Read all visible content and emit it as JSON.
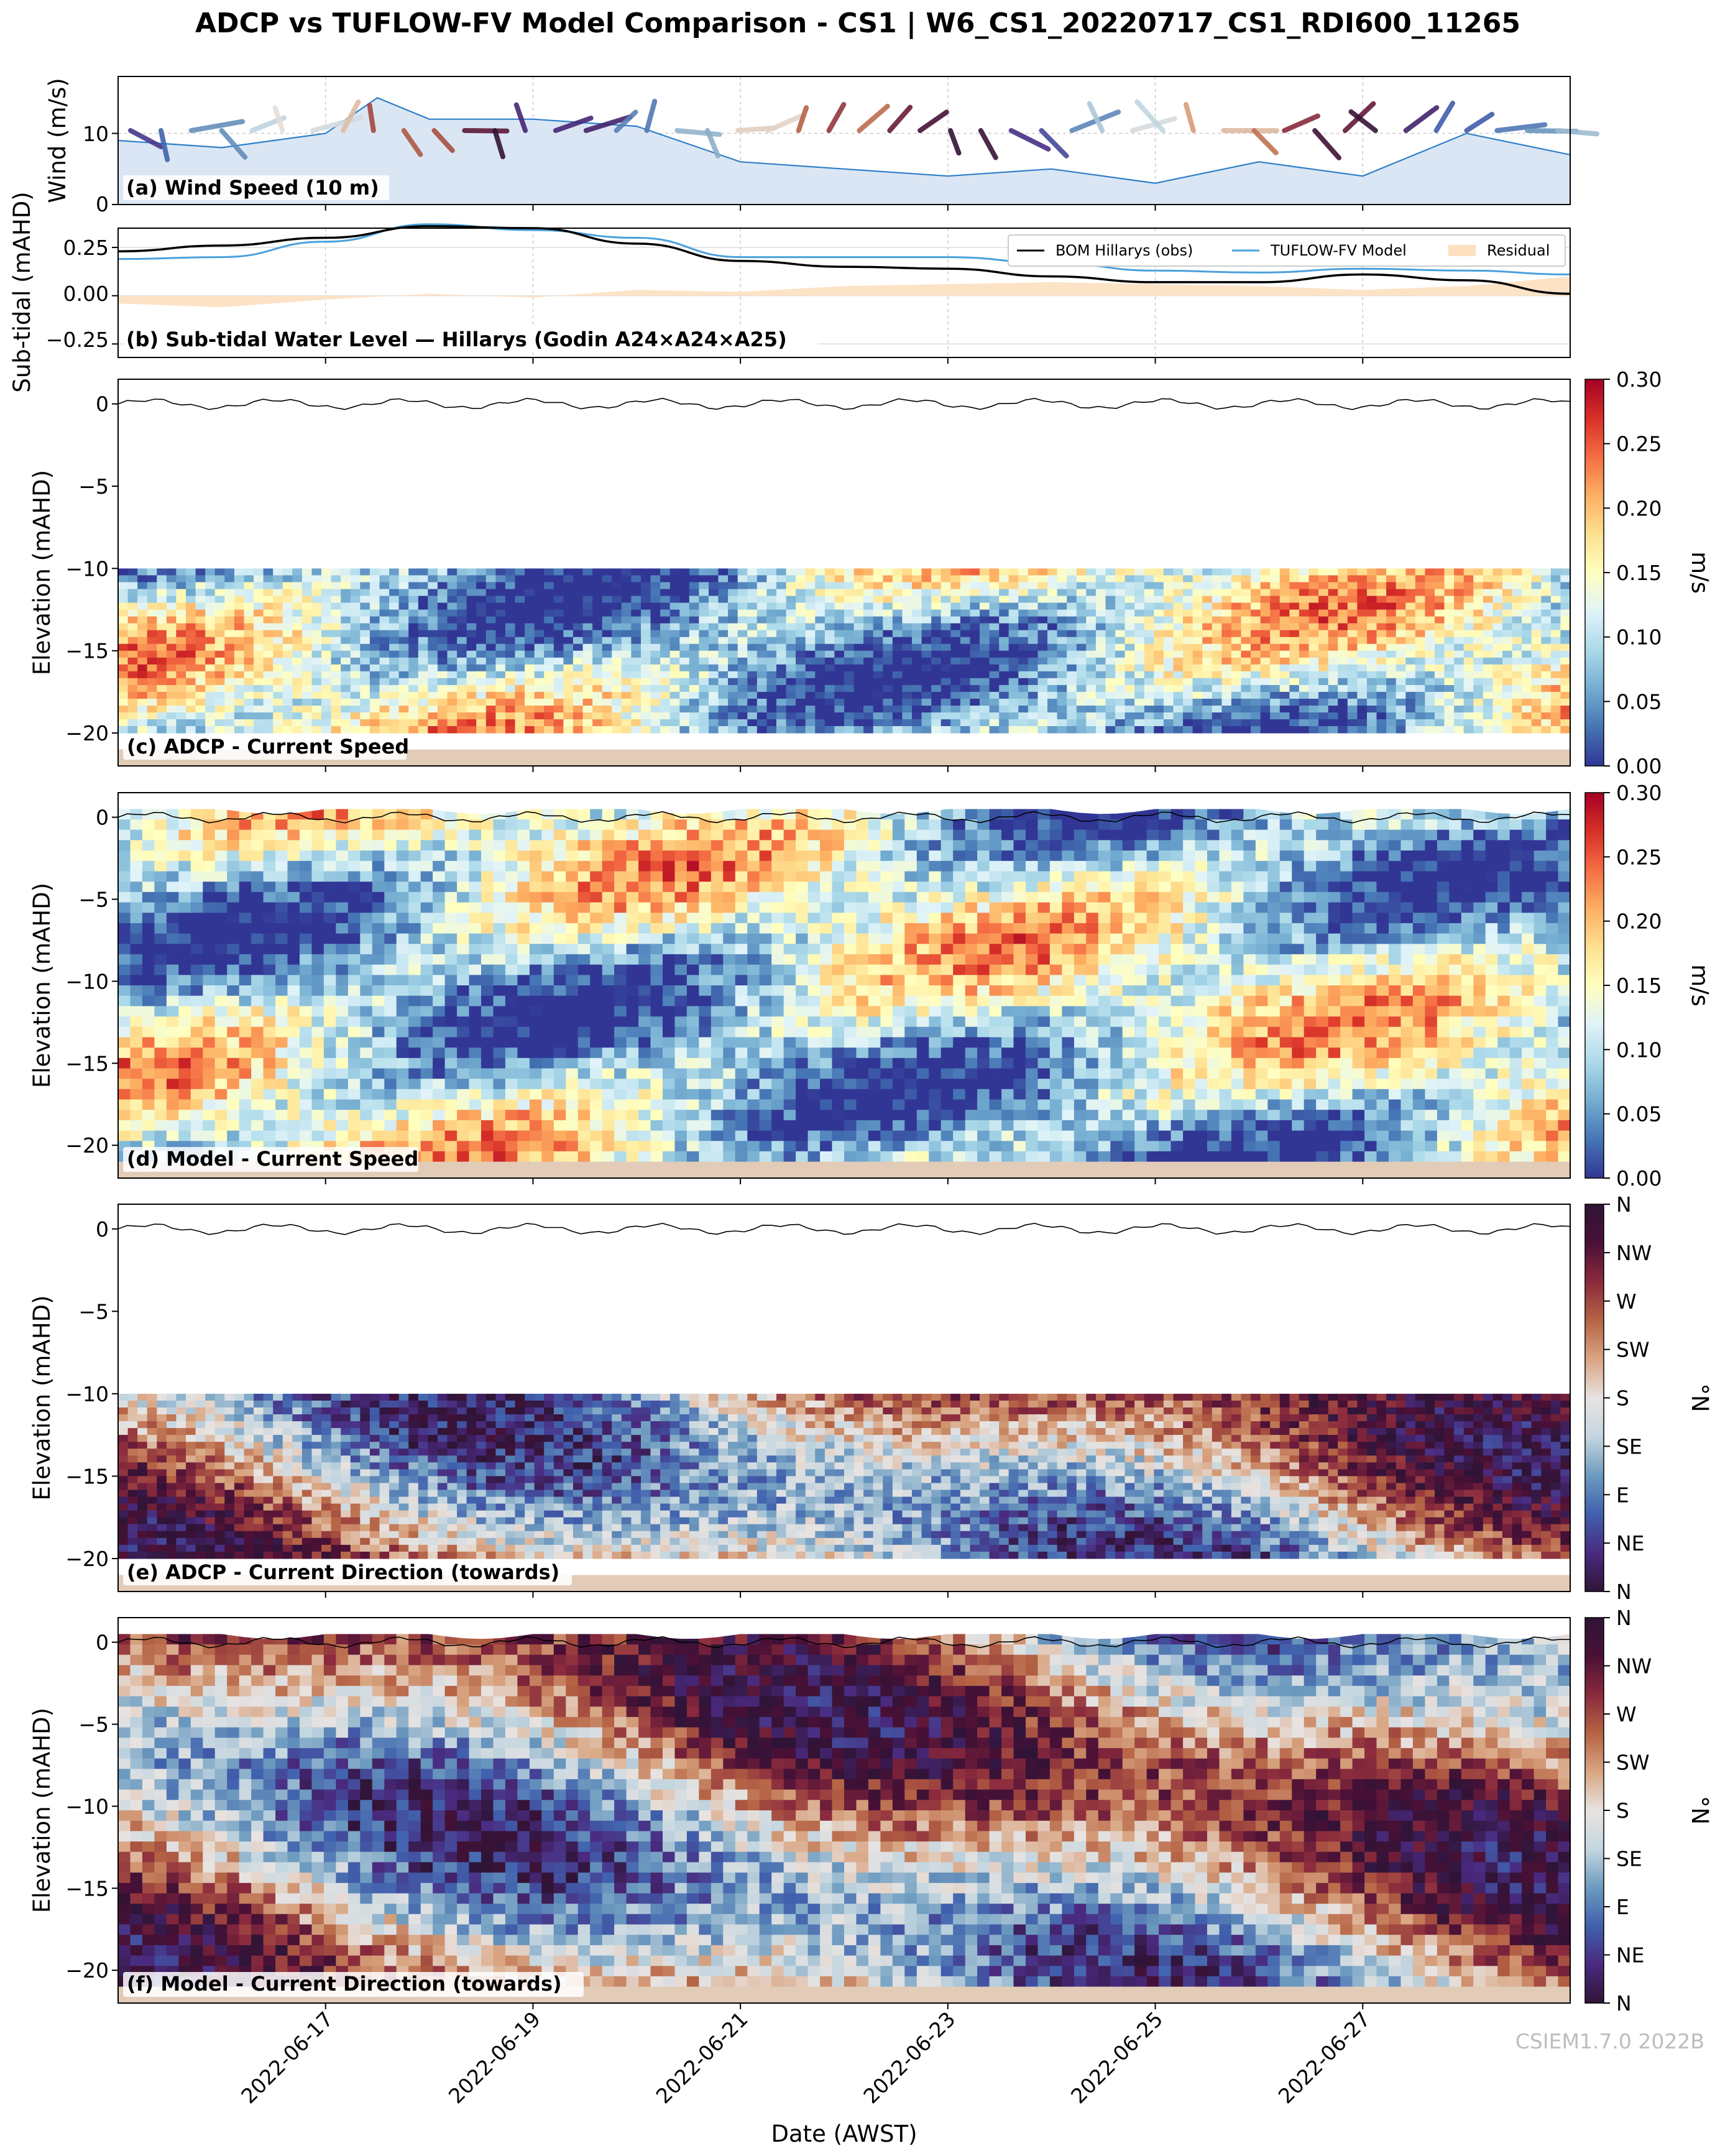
{
  "title": "ADCP vs TUFLOW-FV Model Comparison - CS1 | W6_CS1_20220717_CS1_RDI600_11265",
  "watermark": "CSIEM1.7.0 2022B",
  "xlabel": "Date (AWST)",
  "x_ticks": [
    "2022-06-17",
    "2022-06-19",
    "2022-06-21",
    "2022-06-23",
    "2022-06-25",
    "2022-06-27"
  ],
  "colors": {
    "speed_cmap": [
      "#313695",
      "#4575b4",
      "#74add1",
      "#abd9e9",
      "#e0f3f8",
      "#ffffbf",
      "#fee090",
      "#fdae61",
      "#f46d43",
      "#d73027",
      "#a50026"
    ],
    "direction_cmap": [
      "#2f1437",
      "#4a2a7f",
      "#4060ad",
      "#6d9bbf",
      "#c4d6e0",
      "#e8e3e1",
      "#d9a582",
      "#b56344",
      "#8a2a3d",
      "#4a1036",
      "#2f1437"
    ],
    "wind_fill": "#dbe6f5",
    "wind_line": "#2f7fc9",
    "bom": "#000000",
    "model": "#4aa0dc",
    "residual": "#fde0c0",
    "seabed": "#e2ccb8"
  },
  "panels": {
    "a": {
      "label": "(a) Wind Speed (10 m)",
      "ylabel": "Wind (m/s)",
      "yticks": [
        "0",
        "10"
      ]
    },
    "b": {
      "label": "(b) Sub-tidal Water Level — Hillarys (Godin A24×A24×A25)",
      "ylabel": "Sub-tidal (mAHD)",
      "yticks": [
        "0.25",
        "0.00",
        "−0.25"
      ],
      "legend": [
        "BOM Hillarys (obs)",
        "TUFLOW-FV Model",
        "Residual"
      ]
    },
    "c": {
      "label": "(c) ADCP - Current Speed",
      "ylabel": "Elevation (mAHD)"
    },
    "d": {
      "label": "(d) Model - Current Speed",
      "ylabel": "Elevation (mAHD)"
    },
    "e": {
      "label": "(e) ADCP - Current Direction (towards)",
      "ylabel": "Elevation (mAHD)"
    },
    "f": {
      "label": "(f) Model - Current Direction (towards)",
      "ylabel": "Elevation (mAHD)"
    }
  },
  "elev_ticks": [
    "0",
    "−5",
    "−10",
    "−15",
    "−20"
  ],
  "speed_cbar": {
    "label": "m/s",
    "ticks": [
      "0.00",
      "0.05",
      "0.10",
      "0.15",
      "0.20",
      "0.25",
      "0.30"
    ]
  },
  "dir_cbar": {
    "label": "°N",
    "ticks": [
      "N",
      "NE",
      "E",
      "SE",
      "S",
      "SW",
      "W",
      "NW",
      "N"
    ]
  },
  "chart_data": [
    {
      "type": "area",
      "title": "(a) Wind Speed (10 m)",
      "ylabel": "Wind (m/s)",
      "ylim": [
        0,
        18
      ],
      "x": [
        "2022-06-15",
        "2022-06-16",
        "2022-06-17",
        "2022-06-17T12",
        "2022-06-18",
        "2022-06-19",
        "2022-06-20",
        "2022-06-21",
        "2022-06-22",
        "2022-06-23",
        "2022-06-24",
        "2022-06-25",
        "2022-06-26",
        "2022-06-27",
        "2022-06-28",
        "2022-06-29"
      ],
      "series": [
        {
          "name": "wind",
          "values": [
            9,
            8,
            10,
            15,
            12,
            12,
            11,
            6,
            5,
            4,
            5,
            3,
            6,
            4,
            10,
            7
          ]
        }
      ]
    },
    {
      "type": "line",
      "title": "(b) Sub-tidal Water Level — Hillarys (Godin A24×A24×A25)",
      "ylabel": "Sub-tidal (mAHD)",
      "ylim": [
        -0.32,
        0.35
      ],
      "x": [
        "2022-06-15",
        "2022-06-16",
        "2022-06-17",
        "2022-06-18",
        "2022-06-19",
        "2022-06-20",
        "2022-06-21",
        "2022-06-22",
        "2022-06-23",
        "2022-06-24",
        "2022-06-25",
        "2022-06-26",
        "2022-06-27",
        "2022-06-28",
        "2022-06-29"
      ],
      "series": [
        {
          "name": "BOM Hillarys (obs)",
          "values": [
            0.23,
            0.26,
            0.3,
            0.36,
            0.35,
            0.27,
            0.18,
            0.15,
            0.14,
            0.1,
            0.07,
            0.07,
            0.11,
            0.08,
            0.01
          ]
        },
        {
          "name": "TUFLOW-FV Model",
          "values": [
            0.19,
            0.2,
            0.28,
            0.37,
            0.34,
            0.3,
            0.2,
            0.2,
            0.2,
            0.17,
            0.13,
            0.12,
            0.14,
            0.13,
            0.11
          ]
        },
        {
          "name": "Residual",
          "values": [
            -0.04,
            -0.06,
            -0.02,
            0.01,
            -0.01,
            0.03,
            0.02,
            0.05,
            0.06,
            0.07,
            0.06,
            0.05,
            0.03,
            0.05,
            0.1
          ]
        }
      ]
    },
    {
      "type": "heatmap",
      "title": "(c) ADCP - Current Speed",
      "ylabel": "Elevation (mAHD)",
      "ylim": [
        -22,
        1.5
      ],
      "data_range": [
        -20,
        -10
      ],
      "colorbar": [
        0,
        0.3
      ],
      "units": "m/s"
    },
    {
      "type": "heatmap",
      "title": "(d) Model - Current Speed",
      "ylabel": "Elevation (mAHD)",
      "ylim": [
        -22,
        1.5
      ],
      "data_range": [
        -21,
        0.5
      ],
      "colorbar": [
        0,
        0.3
      ],
      "units": "m/s"
    },
    {
      "type": "heatmap",
      "title": "(e) ADCP - Current Direction (towards)",
      "ylabel": "Elevation (mAHD)",
      "ylim": [
        -22,
        1.5
      ],
      "data_range": [
        -20,
        -10
      ],
      "colorbar": [
        "N",
        "N"
      ],
      "units": "°N"
    },
    {
      "type": "heatmap",
      "title": "(f) Model - Current Direction (towards)",
      "ylabel": "Elevation (mAHD)",
      "ylim": [
        -22,
        1.5
      ],
      "data_range": [
        -21,
        0.5
      ],
      "colorbar": [
        "N",
        "N"
      ],
      "units": "°N"
    }
  ]
}
